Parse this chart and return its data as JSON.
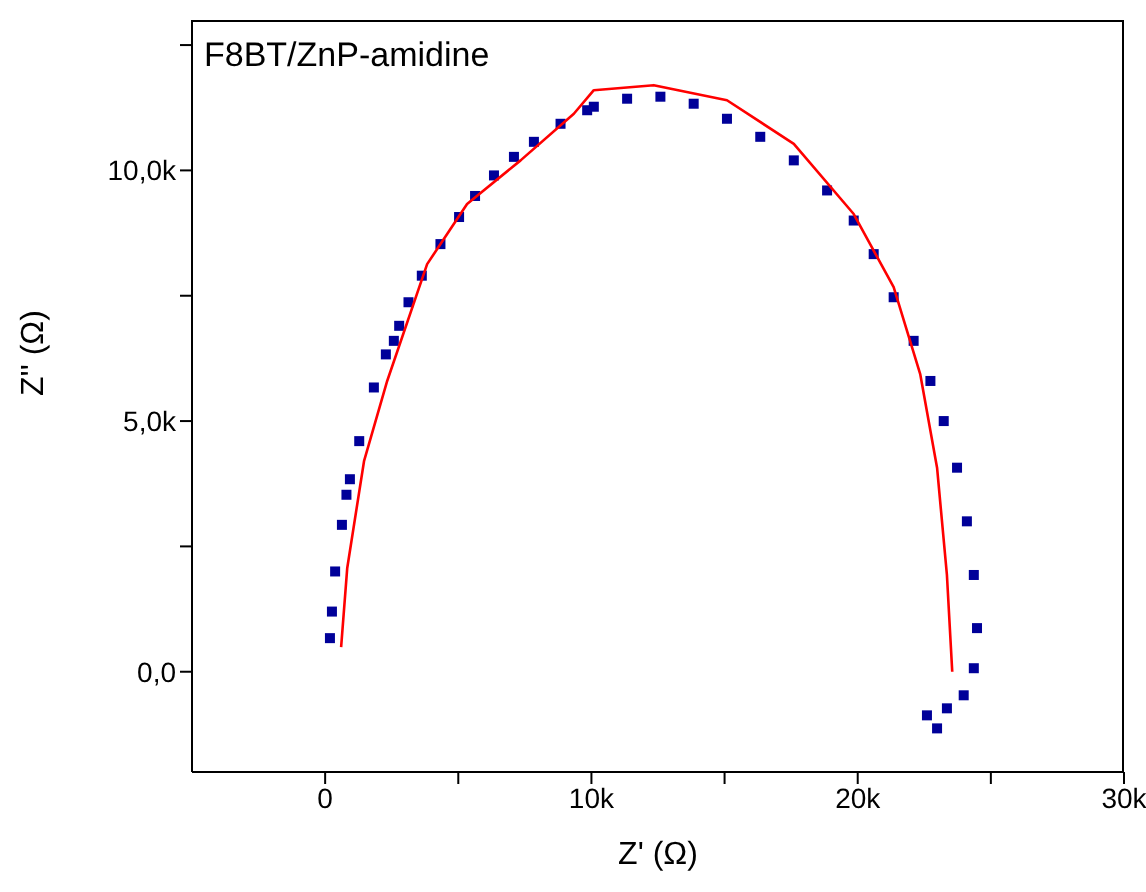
{
  "chart_data": {
    "type": "scatter",
    "annotations": [
      "F8BT/ZnP-amidine"
    ],
    "xlabel": "Z' (Ω)",
    "ylabel": "Z'' (Ω)",
    "xlim": [
      -5000,
      30000
    ],
    "xticks": [
      0,
      {
        "value": 5000,
        "label": null
      },
      {
        "value": 10000,
        "label": "10k"
      },
      {
        "value": 15000,
        "label": null
      },
      {
        "value": 20000,
        "label": "20k"
      },
      {
        "value": 25000,
        "label": null
      },
      {
        "value": 30000,
        "label": "30k"
      }
    ],
    "ylim": [
      -2000,
      13000
    ],
    "yticks": [
      {
        "value": 0,
        "label": "0,0"
      },
      {
        "value": 2500,
        "label": null
      },
      {
        "value": 5000,
        "label": "5,0k"
      },
      {
        "value": 7500,
        "label": null
      },
      {
        "value": 10000,
        "label": "10,0k"
      },
      {
        "value": 12500,
        "label": null
      }
    ],
    "grid": false,
    "legend": false,
    "series": [
      {
        "marker": "square",
        "color": "#000099",
        "x": [
          180,
          255,
          375,
          630,
          800,
          930,
          1280,
          1830,
          2280,
          2580,
          2780,
          3130,
          3630,
          4330,
          5030,
          5630,
          6340,
          7090,
          7840,
          8840,
          9840,
          10090,
          11340,
          12590,
          13840,
          15090,
          16340,
          17600,
          18850,
          19850,
          20600,
          21350,
          22100,
          22730,
          23230,
          23730,
          24100,
          24360,
          24480,
          24360,
          23980,
          23350,
          22600,
          22980
        ],
        "values": [
          670,
          1200,
          2000,
          2930,
          3530,
          3840,
          4600,
          5670,
          6330,
          6600,
          6900,
          7370,
          7900,
          8530,
          9070,
          9490,
          9900,
          10270,
          10570,
          10930,
          11200,
          11270,
          11430,
          11470,
          11330,
          11030,
          10670,
          10200,
          9600,
          9000,
          8330,
          7470,
          6600,
          5800,
          5000,
          4070,
          3000,
          1930,
          870,
          70,
          -470,
          -730,
          -870,
          -1130
        ]
      },
      {
        "type": "line",
        "marker": "none",
        "line_style": "solid",
        "color": "#ff0000",
        "x": [
          600,
          830,
          1460,
          2330,
          3830,
          5330,
          7340,
          9340,
          10090,
          12340,
          15090,
          17600,
          19850,
          21350,
          22350,
          22980,
          23350,
          23550
        ],
        "values": [
          490,
          2070,
          4200,
          5800,
          8130,
          9330,
          10200,
          11130,
          11600,
          11700,
          11400,
          10530,
          9130,
          7670,
          5930,
          4070,
          1930,
          0
        ]
      }
    ]
  }
}
